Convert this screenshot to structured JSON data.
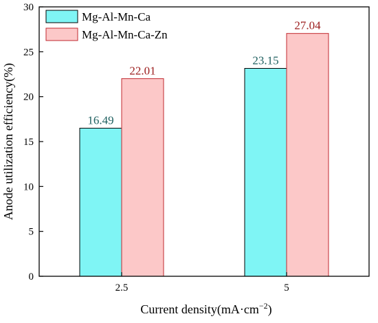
{
  "chart_data": {
    "type": "bar",
    "categories": [
      "2.5",
      "5"
    ],
    "series": [
      {
        "name": "Mg-Al-Mn-Ca",
        "values": [
          16.49,
          23.15
        ],
        "fill": "#7ff5f5",
        "stroke": "#000000",
        "label_color": "#1f6060"
      },
      {
        "name": "Mg-Al-Mn-Ca-Zn",
        "values": [
          22.01,
          27.04
        ],
        "fill": "#fcc8c8",
        "stroke": "#c0282f",
        "label_color": "#9b1c1c"
      }
    ],
    "data_labels": [
      [
        "16.49",
        "23.15"
      ],
      [
        "22.01",
        "27.04"
      ]
    ],
    "xlabel": "Current density(mA·cm",
    "xlabel_superscript": "−2",
    "xlabel_suffix": ")",
    "ylabel": "Anode utilization efficiency(%)",
    "ylim": [
      0,
      30
    ],
    "yticks": [
      0,
      5,
      10,
      15,
      20,
      25,
      30
    ],
    "ytick_labels": [
      "0",
      "5",
      "10",
      "15",
      "20",
      "25",
      "30"
    ],
    "grid": false,
    "legend_position": "top-left"
  }
}
